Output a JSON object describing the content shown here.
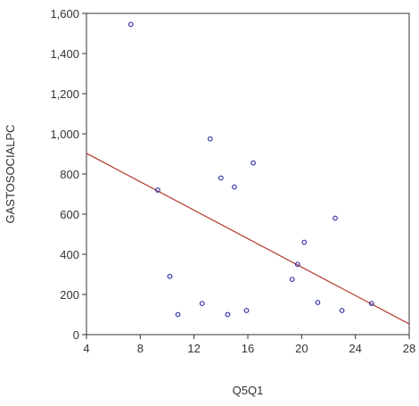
{
  "chart_data": {
    "type": "scatter",
    "xlabel": "Q5Q1",
    "ylabel": "GASTOSOCIALPC",
    "xlim": [
      4,
      28
    ],
    "ylim": [
      0,
      1600
    ],
    "x_ticks": [
      4,
      8,
      12,
      16,
      20,
      24,
      28
    ],
    "x_tick_labels": [
      "4",
      "8",
      "12",
      "16",
      "20",
      "24",
      "28"
    ],
    "y_ticks": [
      0,
      200,
      400,
      600,
      800,
      1000,
      1200,
      1400,
      1600
    ],
    "y_tick_labels": [
      "0",
      "200",
      "400",
      "600",
      "800",
      "1,000",
      "1,200",
      "1,400",
      "1,600"
    ],
    "grid": false,
    "series": [
      {
        "type": "scatter",
        "points": [
          {
            "x": 7.3,
            "y": 1545
          },
          {
            "x": 9.3,
            "y": 720
          },
          {
            "x": 10.2,
            "y": 290
          },
          {
            "x": 10.8,
            "y": 100
          },
          {
            "x": 12.6,
            "y": 155
          },
          {
            "x": 13.2,
            "y": 975
          },
          {
            "x": 14.0,
            "y": 780
          },
          {
            "x": 14.5,
            "y": 100
          },
          {
            "x": 15.0,
            "y": 735
          },
          {
            "x": 15.9,
            "y": 120
          },
          {
            "x": 16.4,
            "y": 855
          },
          {
            "x": 19.3,
            "y": 275
          },
          {
            "x": 19.7,
            "y": 350
          },
          {
            "x": 20.2,
            "y": 460
          },
          {
            "x": 21.2,
            "y": 160
          },
          {
            "x": 22.5,
            "y": 580
          },
          {
            "x": 23.0,
            "y": 120
          },
          {
            "x": 25.2,
            "y": 155
          }
        ]
      },
      {
        "type": "line",
        "points": [
          {
            "x": 4,
            "y": 903
          },
          {
            "x": 28,
            "y": 53
          }
        ]
      }
    ],
    "colors": {
      "marker": "#3333aa",
      "fit_line": "#b03a2e",
      "axis": "#333333"
    }
  }
}
